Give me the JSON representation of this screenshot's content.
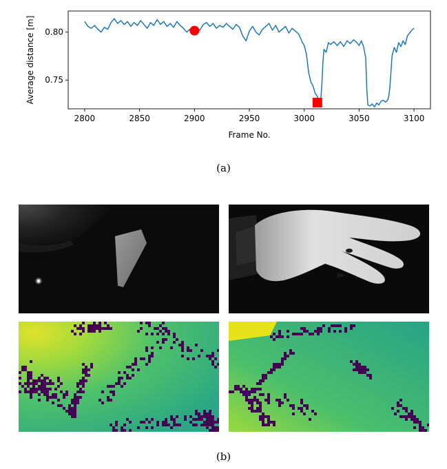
{
  "chart_data": {
    "type": "line",
    "title": "",
    "xlabel": "Frame No.",
    "ylabel": "Average distance [m]",
    "xlim": [
      2785,
      3115
    ],
    "ylim": [
      0.72,
      0.822
    ],
    "xticks": [
      2800,
      2850,
      2900,
      2950,
      3000,
      3050,
      3100
    ],
    "yticks": [
      0.75,
      0.8
    ],
    "xtick_labels": [
      "2800",
      "2850",
      "2900",
      "2950",
      "3000",
      "3050",
      "3100"
    ],
    "ytick_labels": [
      "0.75",
      "0.80"
    ],
    "series": [
      {
        "color": "#1f77b4",
        "x": [
          2800,
          2803,
          2806,
          2809,
          2812,
          2815,
          2818,
          2821,
          2824,
          2827,
          2830,
          2833,
          2836,
          2839,
          2842,
          2845,
          2848,
          2851,
          2854,
          2857,
          2860,
          2863,
          2866,
          2869,
          2872,
          2875,
          2878,
          2881,
          2884,
          2887,
          2890,
          2893,
          2896,
          2899,
          2902,
          2905,
          2908,
          2911,
          2914,
          2917,
          2920,
          2923,
          2926,
          2929,
          2932,
          2935,
          2938,
          2941,
          2944,
          2947,
          2950,
          2953,
          2956,
          2959,
          2962,
          2965,
          2968,
          2971,
          2974,
          2977,
          2980,
          2983,
          2986,
          2989,
          2992,
          2995,
          2998,
          3000,
          3002,
          3004,
          3006,
          3008,
          3010,
          3012,
          3013,
          3014,
          3015,
          3016,
          3017,
          3018,
          3020,
          3022,
          3024,
          3027,
          3030,
          3033,
          3036,
          3039,
          3042,
          3045,
          3048,
          3050,
          3052,
          3054,
          3056,
          3057,
          3058,
          3060,
          3062,
          3064,
          3066,
          3068,
          3070,
          3072,
          3074,
          3076,
          3077,
          3078,
          3079,
          3080,
          3082,
          3084,
          3086,
          3088,
          3090,
          3092,
          3094,
          3096,
          3098,
          3100
        ],
        "y": [
          0.811,
          0.806,
          0.804,
          0.807,
          0.803,
          0.8,
          0.805,
          0.803,
          0.81,
          0.814,
          0.809,
          0.812,
          0.808,
          0.811,
          0.806,
          0.81,
          0.807,
          0.812,
          0.808,
          0.804,
          0.81,
          0.807,
          0.813,
          0.808,
          0.811,
          0.806,
          0.809,
          0.805,
          0.811,
          0.807,
          0.804,
          0.8,
          0.803,
          0.801,
          0.805,
          0.802,
          0.808,
          0.81,
          0.806,
          0.809,
          0.804,
          0.807,
          0.805,
          0.809,
          0.806,
          0.803,
          0.808,
          0.805,
          0.796,
          0.791,
          0.801,
          0.806,
          0.8,
          0.797,
          0.803,
          0.806,
          0.809,
          0.802,
          0.807,
          0.8,
          0.803,
          0.806,
          0.799,
          0.804,
          0.801,
          0.798,
          0.79,
          0.786,
          0.777,
          0.758,
          0.748,
          0.744,
          0.736,
          0.733,
          0.728,
          0.727,
          0.729,
          0.744,
          0.768,
          0.782,
          0.779,
          0.789,
          0.787,
          0.79,
          0.786,
          0.79,
          0.785,
          0.791,
          0.788,
          0.792,
          0.789,
          0.786,
          0.791,
          0.785,
          0.773,
          0.74,
          0.724,
          0.723,
          0.725,
          0.722,
          0.726,
          0.724,
          0.728,
          0.729,
          0.727,
          0.729,
          0.733,
          0.742,
          0.758,
          0.775,
          0.784,
          0.779,
          0.789,
          0.785,
          0.791,
          0.787,
          0.796,
          0.799,
          0.802,
          0.804
        ]
      }
    ],
    "markers": [
      {
        "shape": "circle",
        "color": "#ff0000",
        "x": 2900,
        "y": 0.8015
      },
      {
        "shape": "square",
        "color": "#ff0000",
        "x": 3012,
        "y": 0.7265
      }
    ]
  },
  "captions": {
    "a": "(a)",
    "b": "(b)"
  },
  "images": {
    "ir_left": "grayscale infrared frame, dark background with small bright object",
    "ir_right": "grayscale infrared frame, hand close to camera",
    "depth_left": "colored depth map (viridis) corresponding to left frame",
    "depth_right": "colored depth map (viridis) corresponding to right frame"
  },
  "colors": {
    "line": "#1f77b4",
    "marker": "#ff0000",
    "viridis_purple": "#440154",
    "viridis_teal": "#2bb07f",
    "viridis_yellow": "#e6e419"
  }
}
